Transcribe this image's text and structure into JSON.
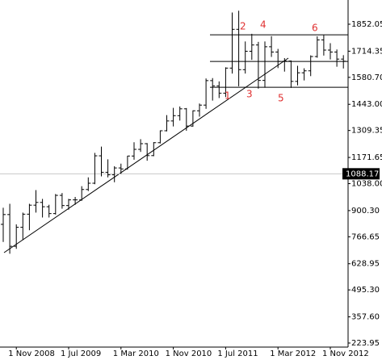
{
  "chart_data": {
    "type": "ohlc",
    "categories": [
      null,
      null,
      "1 Nov 2008",
      null,
      null,
      null,
      null,
      null,
      null,
      null,
      "1 Jul 2009",
      null,
      null,
      null,
      null,
      null,
      null,
      null,
      "1 Mar 2010",
      null,
      null,
      null,
      null,
      null,
      null,
      null,
      "1 Nov 2010",
      null,
      null,
      null,
      null,
      null,
      null,
      null,
      "1 Jul 2011",
      null,
      null,
      null,
      null,
      null,
      null,
      null,
      "1 Mar 2012",
      null,
      null,
      null,
      null,
      null,
      null,
      null,
      "1 Nov 2012",
      null,
      null
    ],
    "open": [
      830,
      880,
      718,
      815,
      882,
      928,
      942,
      920,
      885,
      978,
      926,
      955,
      955,
      1008,
      1040,
      1180,
      1096,
      1083,
      1118,
      1113,
      1179,
      1213,
      1242,
      1181,
      1247,
      1308,
      1358,
      1385,
      1420,
      1332,
      1410,
      1439,
      1564,
      1537,
      1500,
      1628,
      1826,
      1620,
      1714,
      1746,
      1565,
      1737,
      1710,
      1662,
      1664,
      1560,
      1604,
      1614,
      1687,
      1772,
      1720,
      1710,
      1674
    ],
    "high": [
      915,
      935,
      830,
      890,
      935,
      1005,
      960,
      930,
      985,
      990,
      960,
      970,
      1025,
      1070,
      1195,
      1227,
      1162,
      1127,
      1140,
      1180,
      1249,
      1265,
      1245,
      1250,
      1310,
      1388,
      1425,
      1432,
      1424,
      1412,
      1447,
      1575,
      1577,
      1560,
      1632,
      1912,
      1921,
      1764,
      1803,
      1762,
      1764,
      1791,
      1726,
      1679,
      1667,
      1640,
      1627,
      1693,
      1790,
      1796,
      1755,
      1723,
      1694
    ],
    "low": [
      740,
      680,
      705,
      750,
      800,
      890,
      865,
      865,
      880,
      910,
      905,
      930,
      950,
      1000,
      1035,
      1075,
      1070,
      1045,
      1088,
      1110,
      1160,
      1200,
      1155,
      1178,
      1243,
      1305,
      1330,
      1360,
      1308,
      1329,
      1380,
      1420,
      1462,
      1475,
      1480,
      1600,
      1535,
      1600,
      1670,
      1523,
      1528,
      1685,
      1628,
      1610,
      1527,
      1540,
      1565,
      1587,
      1681,
      1692,
      1672,
      1635,
      1626
    ],
    "close": [
      880,
      718,
      815,
      882,
      928,
      942,
      920,
      885,
      978,
      926,
      955,
      955,
      1008,
      1040,
      1180,
      1096,
      1083,
      1118,
      1113,
      1179,
      1213,
      1242,
      1181,
      1247,
      1308,
      1358,
      1385,
      1420,
      1332,
      1410,
      1439,
      1564,
      1537,
      1500,
      1628,
      1826,
      1620,
      1714,
      1746,
      1565,
      1737,
      1710,
      1662,
      1664,
      1560,
      1604,
      1614,
      1687,
      1772,
      1720,
      1710,
      1674,
      1663
    ],
    "color": "#000000",
    "ylim": [
      203.25,
      1975.7
    ],
    "yticks": [
      1852.05,
      1714.35,
      {
        "value": 1580.7,
        "label": "1580.70"
      },
      {
        "value": 1443,
        "label": "1443.00"
      },
      1309.35,
      1171.65,
      {
        "value": 1038,
        "label": "1038.00"
      },
      {
        "value": 900.3,
        "label": "900.30"
      },
      766.65,
      628.95,
      {
        "value": 495.3,
        "label": "495.30"
      },
      {
        "value": 357.6,
        "label": "357.60"
      },
      223.95
    ],
    "current_price": 1088.17,
    "levels": [
      1798,
      1662,
      1530
    ],
    "annotations": [
      "1",
      "2",
      "3",
      "4",
      "5",
      "6"
    ],
    "grid": false
  }
}
